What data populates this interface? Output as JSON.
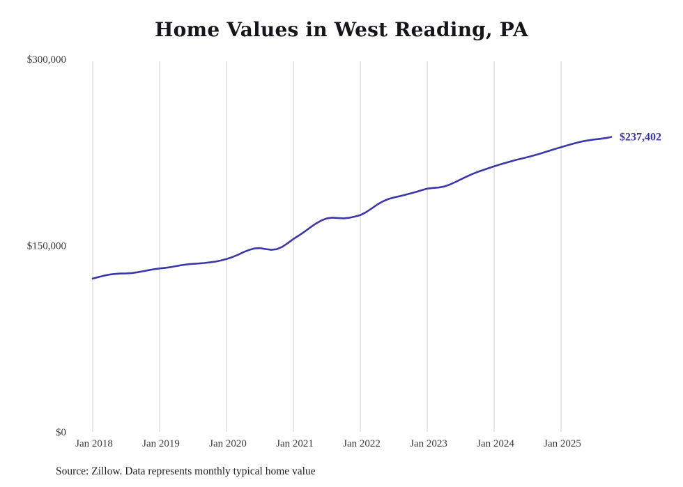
{
  "chart_data": {
    "type": "line",
    "title": "Home Values in West Reading, PA",
    "source": "Source: Zillow. Data represents monthly typical home value",
    "x_start": "2018-01",
    "x_end": "2025-10",
    "frequency": "monthly",
    "series_name": "Typical home value (USD)",
    "values": [
      123400,
      124600,
      125800,
      126700,
      127200,
      127500,
      127600,
      127900,
      128500,
      129300,
      130200,
      131000,
      131600,
      132100,
      132700,
      133500,
      134300,
      134900,
      135300,
      135600,
      136000,
      136500,
      137100,
      138000,
      139200,
      140700,
      142500,
      144600,
      146400,
      147700,
      148000,
      147200,
      146600,
      147100,
      149000,
      152000,
      155300,
      158200,
      161200,
      164500,
      167600,
      170200,
      171900,
      172500,
      172200,
      171900,
      172400,
      173300,
      174500,
      176800,
      179800,
      182900,
      185500,
      187400,
      188700,
      189700,
      190800,
      192000,
      193200,
      194600,
      195800,
      196400,
      196700,
      197500,
      199000,
      201000,
      203200,
      205400,
      207400,
      209200,
      210800,
      212300,
      213800,
      215200,
      216500,
      217800,
      219000,
      220100,
      221200,
      222400,
      223700,
      225100,
      226500,
      227900,
      229200,
      230500,
      231800,
      233000,
      234000,
      234800,
      235400,
      235900,
      236500,
      237402
    ],
    "ylim": [
      0,
      300000
    ],
    "yticks": [
      0,
      150000,
      300000
    ],
    "ytick_labels": [
      "$0",
      "$150,000",
      "$300,000"
    ],
    "xticks": [
      "Jan 2018",
      "Jan 2019",
      "Jan 2020",
      "Jan 2021",
      "Jan 2022",
      "Jan 2023",
      "Jan 2024",
      "Jan 2025"
    ],
    "end_label": "$237,402",
    "grid": "vertical-only",
    "legend": "none",
    "colors": {
      "line": "#3b37a8",
      "end_label": "#3b37a8",
      "grid": "#cccccc",
      "tick_text": "#3a3a3a",
      "title_text": "#15151c",
      "source_text": "#222222"
    }
  }
}
